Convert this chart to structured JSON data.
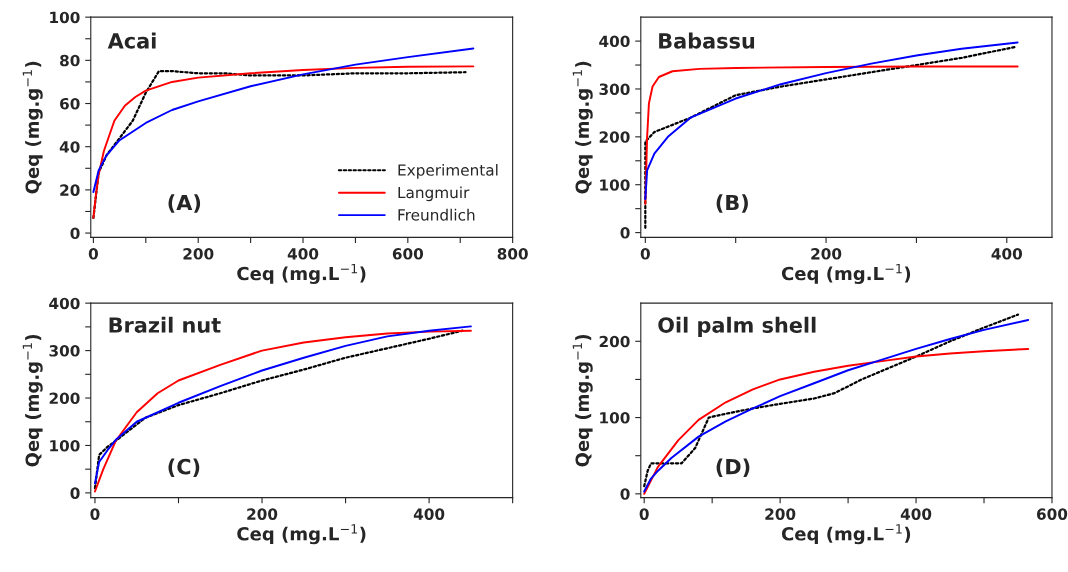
{
  "chart_data": [
    {
      "type": "line",
      "title": "Acai",
      "xlabel": "Ceq (mg.L$^{−1}$)",
      "ylabel": "Qeq (mg.g$^{−1}$)",
      "annotations": [
        "(A)"
      ],
      "xlim": [
        -5,
        800
      ],
      "ylim": [
        -2,
        100
      ],
      "xticks": [
        0,
        {
          "value": 100,
          "label": null
        },
        200,
        {
          "value": 300,
          "label": null
        },
        400,
        {
          "value": 500,
          "label": null
        },
        600,
        {
          "value": 700,
          "label": null
        },
        800
      ],
      "yticks": [
        0,
        {
          "value": 10,
          "label": null
        },
        20,
        {
          "value": 30,
          "label": null
        },
        40,
        {
          "value": 50,
          "label": null
        },
        60,
        {
          "value": 70,
          "label": null
        },
        80,
        {
          "value": 90,
          "label": null
        },
        100
      ],
      "grid": false,
      "legend": "bottom right",
      "marker": "none",
      "series": [
        {
          "name": "Experimental",
          "color": "#000000",
          "line_style": "dotted",
          "x": [
            0,
            10,
            25,
            50,
            75,
            100,
            125,
            150,
            200,
            250,
            300,
            400,
            500,
            600,
            710
          ],
          "values": [
            7,
            28,
            36,
            44,
            52,
            65,
            75,
            75,
            74,
            74,
            73,
            73,
            74,
            74,
            74.5
          ]
        },
        {
          "name": "Langmuir",
          "color": "#ff0000",
          "line_style": "solid",
          "x": [
            0,
            5,
            10,
            20,
            40,
            60,
            80,
            100,
            150,
            200,
            300,
            400,
            500,
            600,
            725
          ],
          "values": [
            7,
            18,
            27,
            38,
            52,
            59,
            63,
            66,
            70,
            72,
            74,
            75.5,
            76.5,
            77,
            77.2
          ]
        },
        {
          "name": "Freundlich",
          "color": "#0000ff",
          "line_style": "solid",
          "x": [
            0,
            10,
            25,
            50,
            100,
            150,
            200,
            300,
            400,
            500,
            600,
            725
          ],
          "values": [
            19,
            29,
            36,
            43,
            51,
            57,
            61,
            68,
            73.5,
            78,
            81.5,
            85.5
          ]
        }
      ]
    },
    {
      "type": "line",
      "title": "Babassu",
      "xlabel": "Ceq (mg.L$^{−1}$)",
      "ylabel": "Qeq (mg.g$^{−1}$)",
      "annotations": [
        "(B)"
      ],
      "xlim": [
        -5,
        450
      ],
      "ylim": [
        -10,
        450
      ],
      "xticks": [
        0,
        {
          "value": 100,
          "label": null
        },
        200,
        {
          "value": 300,
          "label": null
        },
        400
      ],
      "yticks": [
        0,
        {
          "value": 50,
          "label": null
        },
        100,
        {
          "value": 150,
          "label": null
        },
        200,
        {
          "value": 250,
          "label": null
        },
        300,
        {
          "value": 350,
          "label": null
        },
        400
      ],
      "grid": false,
      "legend": false,
      "marker": "none",
      "series": [
        {
          "color": "#000000",
          "line_style": "dotted",
          "x": [
            0,
            0,
            10,
            50,
            100,
            150,
            200,
            250,
            300,
            350,
            410
          ],
          "values": [
            10,
            190,
            210,
            240,
            287,
            305,
            320,
            335,
            350,
            365,
            388
          ]
        },
        {
          "color": "#ff0000",
          "line_style": "solid",
          "x": [
            0,
            2,
            4,
            8,
            15,
            30,
            60,
            100,
            200,
            300,
            412
          ],
          "values": [
            60,
            200,
            270,
            305,
            325,
            337,
            342,
            344,
            346,
            347,
            347
          ]
        },
        {
          "color": "#0000ff",
          "line_style": "solid",
          "x": [
            0,
            2,
            10,
            25,
            50,
            100,
            150,
            200,
            250,
            300,
            350,
            412
          ],
          "values": [
            70,
            130,
            165,
            200,
            240,
            280,
            310,
            333,
            353,
            370,
            384,
            397
          ]
        }
      ]
    },
    {
      "type": "line",
      "title": "Brazil nut",
      "xlabel": "Ceq (mg.L$^{−1}$)",
      "ylabel": "Qeq (mg.g$^{−1}$)",
      "annotations": [
        "(C)"
      ],
      "xlim": [
        -5,
        500
      ],
      "ylim": [
        -10,
        400
      ],
      "xticks": [
        0,
        {
          "value": 100,
          "label": null
        },
        200,
        {
          "value": 300,
          "label": null
        },
        400,
        {
          "value": 500,
          "label": null
        }
      ],
      "yticks": [
        0,
        {
          "value": 50,
          "label": null
        },
        100,
        {
          "value": 150,
          "label": null
        },
        200,
        {
          "value": 250,
          "label": null
        },
        300,
        {
          "value": 350,
          "label": null
        },
        400
      ],
      "grid": false,
      "legend": false,
      "marker": "none",
      "series": [
        {
          "color": "#000000",
          "line_style": "dotted",
          "x": [
            0,
            5,
            15,
            25,
            60,
            100,
            150,
            200,
            250,
            300,
            350,
            400,
            440
          ],
          "values": [
            10,
            80,
            97,
            110,
            158,
            185,
            210,
            237,
            260,
            285,
            305,
            325,
            342
          ]
        },
        {
          "color": "#ff0000",
          "line_style": "solid",
          "x": [
            0,
            10,
            25,
            50,
            75,
            100,
            150,
            200,
            250,
            300,
            350,
            400,
            450
          ],
          "values": [
            3,
            50,
            110,
            170,
            210,
            237,
            270,
            300,
            317,
            328,
            336,
            340,
            342
          ]
        },
        {
          "color": "#0000ff",
          "line_style": "solid",
          "x": [
            0,
            5,
            15,
            25,
            50,
            100,
            150,
            200,
            250,
            300,
            350,
            400,
            450
          ],
          "values": [
            20,
            65,
            90,
            112,
            150,
            190,
            225,
            258,
            285,
            310,
            330,
            342,
            351
          ]
        }
      ]
    },
    {
      "type": "line",
      "title": "Oil palm shell",
      "xlabel": "Ceq (mg.L$^{−1}$)",
      "ylabel": "Qeq (mg.g$^{−1}$)",
      "annotations": [
        "(D)"
      ],
      "xlim": [
        -5,
        600
      ],
      "ylim": [
        -5,
        250
      ],
      "xticks": [
        0,
        {
          "value": 100,
          "label": null
        },
        200,
        {
          "value": 300,
          "label": null
        },
        400,
        {
          "value": 500,
          "label": null
        },
        600
      ],
      "yticks": [
        0,
        {
          "value": 50,
          "label": null
        },
        100,
        {
          "value": 150,
          "label": null
        },
        200
      ],
      "grid": false,
      "legend": false,
      "marker": "none",
      "series": [
        {
          "color": "#000000",
          "line_style": "dotted",
          "x": [
            0,
            5,
            10,
            30,
            55,
            75,
            95,
            120,
            160,
            200,
            250,
            280,
            320,
            360,
            400,
            450,
            500,
            550
          ],
          "values": [
            10,
            30,
            40,
            40,
            40,
            60,
            100,
            105,
            112,
            118,
            125,
            132,
            150,
            165,
            180,
            200,
            218,
            235
          ]
        },
        {
          "color": "#ff0000",
          "line_style": "solid",
          "x": [
            0,
            20,
            50,
            80,
            120,
            160,
            200,
            250,
            300,
            350,
            400,
            450,
            500,
            565
          ],
          "values": [
            0,
            35,
            70,
            97,
            120,
            137,
            150,
            160,
            168,
            174,
            180,
            184,
            187,
            190
          ]
        },
        {
          "color": "#0000ff",
          "line_style": "solid",
          "x": [
            0,
            10,
            20,
            40,
            80,
            120,
            160,
            200,
            250,
            300,
            350,
            400,
            450,
            500,
            565
          ],
          "values": [
            3,
            20,
            30,
            47,
            75,
            95,
            112,
            128,
            145,
            162,
            176,
            190,
            203,
            215,
            228
          ]
        }
      ]
    }
  ]
}
